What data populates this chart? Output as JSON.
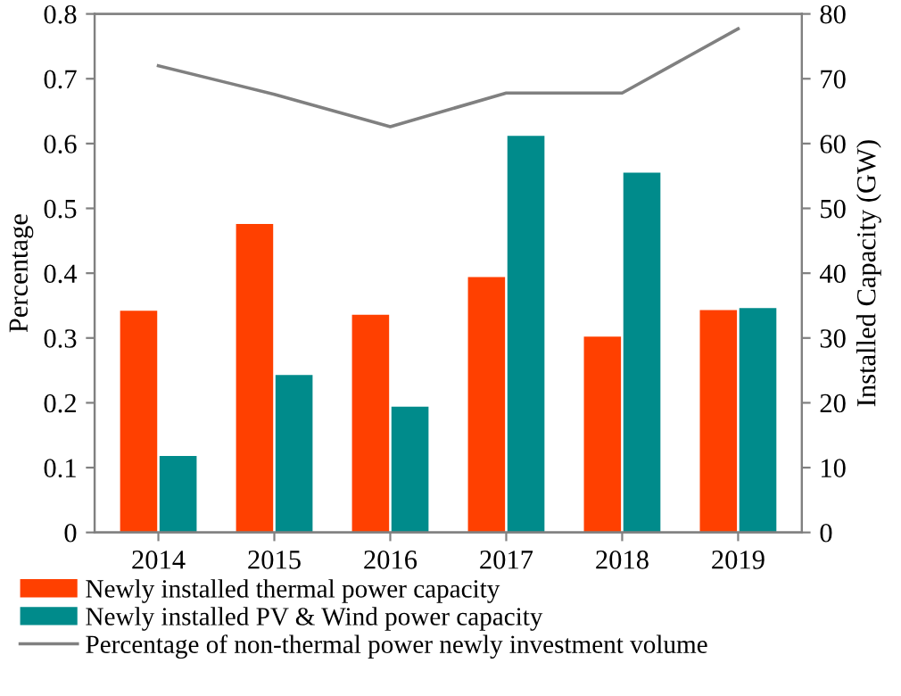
{
  "chart_data": {
    "type": "bar",
    "categories": [
      "2014",
      "2015",
      "2016",
      "2017",
      "2018",
      "2019"
    ],
    "ylabel": "Percentage",
    "y2label": "Installed Capacity (GW)",
    "ylim": [
      0,
      0.8
    ],
    "yticks": [
      0,
      0.1,
      0.2,
      0.3,
      0.4,
      0.5,
      0.6,
      0.7,
      0.8
    ],
    "y2lim": [
      0,
      80
    ],
    "y2ticks": [
      0,
      10,
      20,
      30,
      40,
      50,
      60,
      70,
      80
    ],
    "series": [
      {
        "name": "Newly installed thermal power capacity",
        "axis": "y2",
        "color": "#ff4000",
        "values": [
          34.2,
          47.6,
          33.6,
          39.4,
          30.2,
          34.3
        ]
      },
      {
        "name": "Newly installed PV & Wind power capacity",
        "axis": "y2",
        "color": "#008b8b",
        "values": [
          11.8,
          24.3,
          19.4,
          61.2,
          55.5,
          34.6
        ]
      },
      {
        "name": "Percentage of non-thermal power newly investment volume",
        "type": "line",
        "axis": "y",
        "color": "#808080",
        "values": [
          0.72,
          0.676,
          0.626,
          0.678,
          0.678,
          0.777
        ]
      }
    ],
    "legend": "bottom",
    "grid": false,
    "marker": "none",
    "line_style": "solid"
  }
}
